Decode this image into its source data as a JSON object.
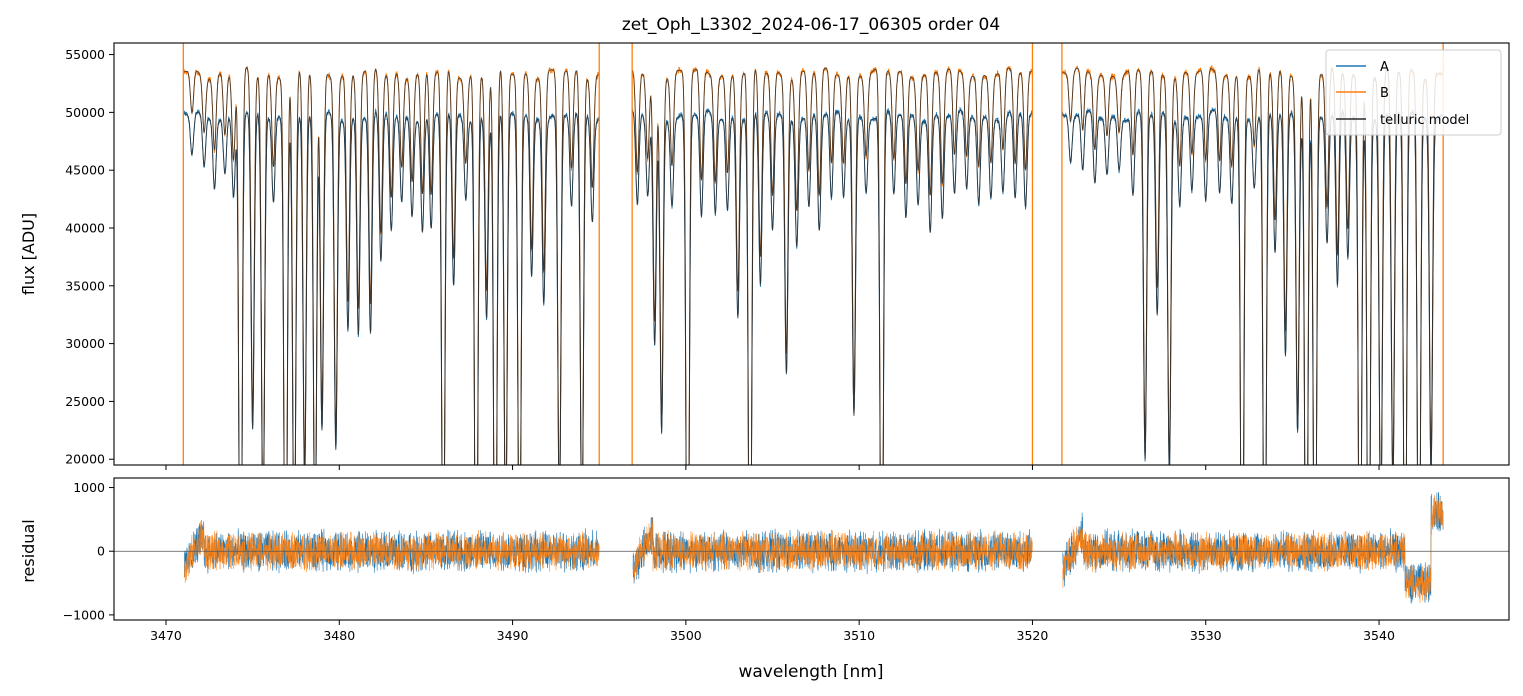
{
  "title": "zet_Oph_L3302_2024-06-17_06305  order 04",
  "colors": {
    "A": "#1f77b4",
    "B": "#ff7f0e",
    "model": "#2b2b2b",
    "zero": "#555555"
  },
  "chart_data": [
    {
      "type": "line",
      "panel": "top",
      "title": "zet_Oph_L3302_2024-06-17_06305  order 04",
      "xlabel": "",
      "ylabel": "flux [ADU]",
      "xlim": [
        3467,
        3547.5
      ],
      "ylim": [
        19500,
        56000
      ],
      "xticks": [
        3470,
        3480,
        3490,
        3500,
        3510,
        3520,
        3530,
        3540
      ],
      "yticks": [
        20000,
        25000,
        30000,
        35000,
        40000,
        45000,
        50000,
        55000
      ],
      "ytick_labels": [
        "20000",
        "25000",
        "30000",
        "35000",
        "40000",
        "45000",
        "50000",
        "55000"
      ],
      "legend": {
        "placement": "top-right",
        "entries": [
          "A",
          "B",
          "telluric model"
        ]
      },
      "series": [
        {
          "name": "A",
          "continuum": 49700,
          "approx": true
        },
        {
          "name": "B",
          "continuum": 53400,
          "approx": true
        },
        {
          "name": "telluric model",
          "approx": true
        }
      ],
      "segments": [
        [
          3471.0,
          3495.0
        ],
        [
          3496.9,
          3520.0
        ],
        [
          3521.7,
          3543.7
        ]
      ],
      "absorption_lines": [
        {
          "x": 3471.5,
          "depth": 0.07
        },
        {
          "x": 3472.2,
          "depth": 0.09
        },
        {
          "x": 3472.8,
          "depth": 0.12
        },
        {
          "x": 3473.4,
          "depth": 0.1
        },
        {
          "x": 3473.9,
          "depth": 0.14
        },
        {
          "x": 3474.3,
          "depth": 1.0
        },
        {
          "x": 3475.0,
          "depth": 0.55
        },
        {
          "x": 3475.6,
          "depth": 0.72
        },
        {
          "x": 3476.2,
          "depth": 0.15
        },
        {
          "x": 3476.9,
          "depth": 1.0
        },
        {
          "x": 3477.4,
          "depth": 0.8
        },
        {
          "x": 3478.0,
          "depth": 0.64
        },
        {
          "x": 3478.6,
          "depth": 0.78
        },
        {
          "x": 3479.0,
          "depth": 0.55
        },
        {
          "x": 3479.8,
          "depth": 0.58
        },
        {
          "x": 3480.5,
          "depth": 0.37
        },
        {
          "x": 3481.1,
          "depth": 0.38
        },
        {
          "x": 3481.8,
          "depth": 0.38
        },
        {
          "x": 3482.4,
          "depth": 0.26
        },
        {
          "x": 3483.0,
          "depth": 0.2
        },
        {
          "x": 3483.6,
          "depth": 0.15
        },
        {
          "x": 3484.2,
          "depth": 0.17
        },
        {
          "x": 3484.8,
          "depth": 0.2
        },
        {
          "x": 3485.3,
          "depth": 0.2
        },
        {
          "x": 3486.0,
          "depth": 0.88
        },
        {
          "x": 3486.6,
          "depth": 0.3
        },
        {
          "x": 3487.3,
          "depth": 0.14
        },
        {
          "x": 3487.9,
          "depth": 1.0
        },
        {
          "x": 3488.5,
          "depth": 0.35
        },
        {
          "x": 3489.0,
          "depth": 1.0
        },
        {
          "x": 3489.6,
          "depth": 0.75
        },
        {
          "x": 3490.4,
          "depth": 0.85
        },
        {
          "x": 3491.1,
          "depth": 0.28
        },
        {
          "x": 3491.8,
          "depth": 0.32
        },
        {
          "x": 3492.7,
          "depth": 0.7
        },
        {
          "x": 3493.4,
          "depth": 0.16
        },
        {
          "x": 3494.0,
          "depth": 0.74
        },
        {
          "x": 3494.6,
          "depth": 0.18
        },
        {
          "x": 3497.2,
          "depth": 0.16
        },
        {
          "x": 3497.8,
          "depth": 0.14
        },
        {
          "x": 3498.2,
          "depth": 0.4
        },
        {
          "x": 3498.6,
          "depth": 0.55
        },
        {
          "x": 3499.2,
          "depth": 0.15
        },
        {
          "x": 3500.1,
          "depth": 1.0
        },
        {
          "x": 3500.9,
          "depth": 0.18
        },
        {
          "x": 3501.7,
          "depth": 0.17
        },
        {
          "x": 3502.4,
          "depth": 0.16
        },
        {
          "x": 3503.0,
          "depth": 0.35
        },
        {
          "x": 3503.7,
          "depth": 1.0
        },
        {
          "x": 3504.3,
          "depth": 0.3
        },
        {
          "x": 3505.0,
          "depth": 0.2
        },
        {
          "x": 3505.8,
          "depth": 0.45
        },
        {
          "x": 3506.4,
          "depth": 0.22
        },
        {
          "x": 3507.1,
          "depth": 0.16
        },
        {
          "x": 3507.7,
          "depth": 0.2
        },
        {
          "x": 3508.4,
          "depth": 0.15
        },
        {
          "x": 3509.1,
          "depth": 0.14
        },
        {
          "x": 3509.7,
          "depth": 0.52
        },
        {
          "x": 3510.4,
          "depth": 0.13
        },
        {
          "x": 3511.3,
          "depth": 1.0
        },
        {
          "x": 3512.0,
          "depth": 0.14
        },
        {
          "x": 3512.7,
          "depth": 0.18
        },
        {
          "x": 3513.4,
          "depth": 0.15
        },
        {
          "x": 3514.1,
          "depth": 0.2
        },
        {
          "x": 3514.8,
          "depth": 0.18
        },
        {
          "x": 3515.5,
          "depth": 0.14
        },
        {
          "x": 3516.2,
          "depth": 0.13
        },
        {
          "x": 3516.9,
          "depth": 0.15
        },
        {
          "x": 3517.6,
          "depth": 0.14
        },
        {
          "x": 3518.3,
          "depth": 0.13
        },
        {
          "x": 3519.0,
          "depth": 0.15
        },
        {
          "x": 3519.6,
          "depth": 0.16
        },
        {
          "x": 3522.2,
          "depth": 0.08
        },
        {
          "x": 3522.9,
          "depth": 0.1
        },
        {
          "x": 3523.6,
          "depth": 0.12
        },
        {
          "x": 3524.3,
          "depth": 0.1
        },
        {
          "x": 3525.0,
          "depth": 0.09
        },
        {
          "x": 3525.8,
          "depth": 0.14
        },
        {
          "x": 3526.5,
          "depth": 0.6
        },
        {
          "x": 3527.2,
          "depth": 0.35
        },
        {
          "x": 3527.9,
          "depth": 0.62
        },
        {
          "x": 3528.5,
          "depth": 0.15
        },
        {
          "x": 3529.2,
          "depth": 0.13
        },
        {
          "x": 3530.0,
          "depth": 0.15
        },
        {
          "x": 3530.8,
          "depth": 0.14
        },
        {
          "x": 3531.5,
          "depth": 0.15
        },
        {
          "x": 3532.1,
          "depth": 1.0
        },
        {
          "x": 3532.8,
          "depth": 0.12
        },
        {
          "x": 3533.4,
          "depth": 0.97
        },
        {
          "x": 3534.0,
          "depth": 0.24
        },
        {
          "x": 3534.6,
          "depth": 0.42
        },
        {
          "x": 3535.3,
          "depth": 0.55
        },
        {
          "x": 3535.8,
          "depth": 1.0
        },
        {
          "x": 3536.3,
          "depth": 1.0
        },
        {
          "x": 3537.0,
          "depth": 0.22
        },
        {
          "x": 3537.6,
          "depth": 0.3
        },
        {
          "x": 3538.2,
          "depth": 0.25
        },
        {
          "x": 3538.9,
          "depth": 1.0
        },
        {
          "x": 3539.4,
          "depth": 1.0
        },
        {
          "x": 3540.1,
          "depth": 0.72
        },
        {
          "x": 3540.8,
          "depth": 0.65
        },
        {
          "x": 3541.5,
          "depth": 0.92
        },
        {
          "x": 3542.3,
          "depth": 0.97
        },
        {
          "x": 3543.0,
          "depth": 0.62
        }
      ],
      "spikes": [
        3471.0,
        3495.0,
        3496.9,
        3520.0,
        3521.7,
        3543.7
      ]
    },
    {
      "type": "line",
      "panel": "bottom",
      "xlabel": "wavelength [nm]",
      "ylabel": "residual",
      "xlim": [
        3467,
        3547.5
      ],
      "ylim": [
        -1080,
        1150
      ],
      "xticks": [
        3470,
        3480,
        3490,
        3500,
        3510,
        3520,
        3530,
        3540
      ],
      "xtick_labels": [
        "3470",
        "3480",
        "3490",
        "3500",
        "3510",
        "3520",
        "3530",
        "3540"
      ],
      "yticks": [
        -1000,
        0,
        1000
      ],
      "ytick_labels": [
        "−1000",
        "0",
        "1000"
      ],
      "series": [
        {
          "name": "A",
          "noise_amplitude": 260,
          "approx": true
        },
        {
          "name": "B",
          "noise_amplitude": 240,
          "approx": true
        }
      ],
      "zero_line": 0
    }
  ]
}
